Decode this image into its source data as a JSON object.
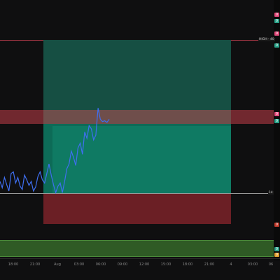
{
  "colors": {
    "background": "#0f0f10",
    "profit_zone": "#0d6b57",
    "profit_zone_upper": "#1a5a4b",
    "loss_zone": "#6b1f25",
    "resistance_band": "#7a2a32",
    "support_band": "#2f5a25",
    "price_line": "#3f6ff0",
    "top_level_line": "#b33a4a",
    "entry_line": "#9a9a9a"
  },
  "price_labels": {
    "top_level": "HIGH · 40",
    "entry_level": "14"
  },
  "axis_tags": [
    {
      "label": "0",
      "color": "#e24a7a"
    },
    {
      "label": "0",
      "color": "#2aa38a"
    },
    {
      "label": "0",
      "color": "#e24a7a"
    },
    {
      "label": "0",
      "color": "#2aa38a"
    },
    {
      "label": "0",
      "color": "#e24a7a"
    },
    {
      "label": "0",
      "color": "#2aa38a"
    },
    {
      "label": "0",
      "color": "#c0392b"
    },
    {
      "label": "0",
      "color": "#2aa38a"
    },
    {
      "label": "0",
      "color": "#e0a030"
    }
  ],
  "time_axis": [
    "18:00",
    "21:00",
    "Aug",
    "03:00",
    "06:00",
    "09:00",
    "12:00",
    "15:00",
    "18:00",
    "21:00",
    "4",
    "03:00",
    "06"
  ],
  "chart_data": {
    "type": "line",
    "series": [
      {
        "values": [
          50,
          42,
          55,
          46,
          38,
          60,
          62,
          48,
          55,
          44,
          40,
          58,
          52,
          45,
          50,
          38,
          43,
          56,
          62,
          52,
          48,
          60,
          72,
          58,
          46,
          36,
          44,
          48,
          36,
          50,
          66,
          72,
          88,
          80,
          70,
          92,
          98,
          84,
          112,
          104,
          120,
          116,
          102,
          108,
          142,
          128,
          125,
          126,
          124,
          128
        ]
      }
    ]
  }
}
